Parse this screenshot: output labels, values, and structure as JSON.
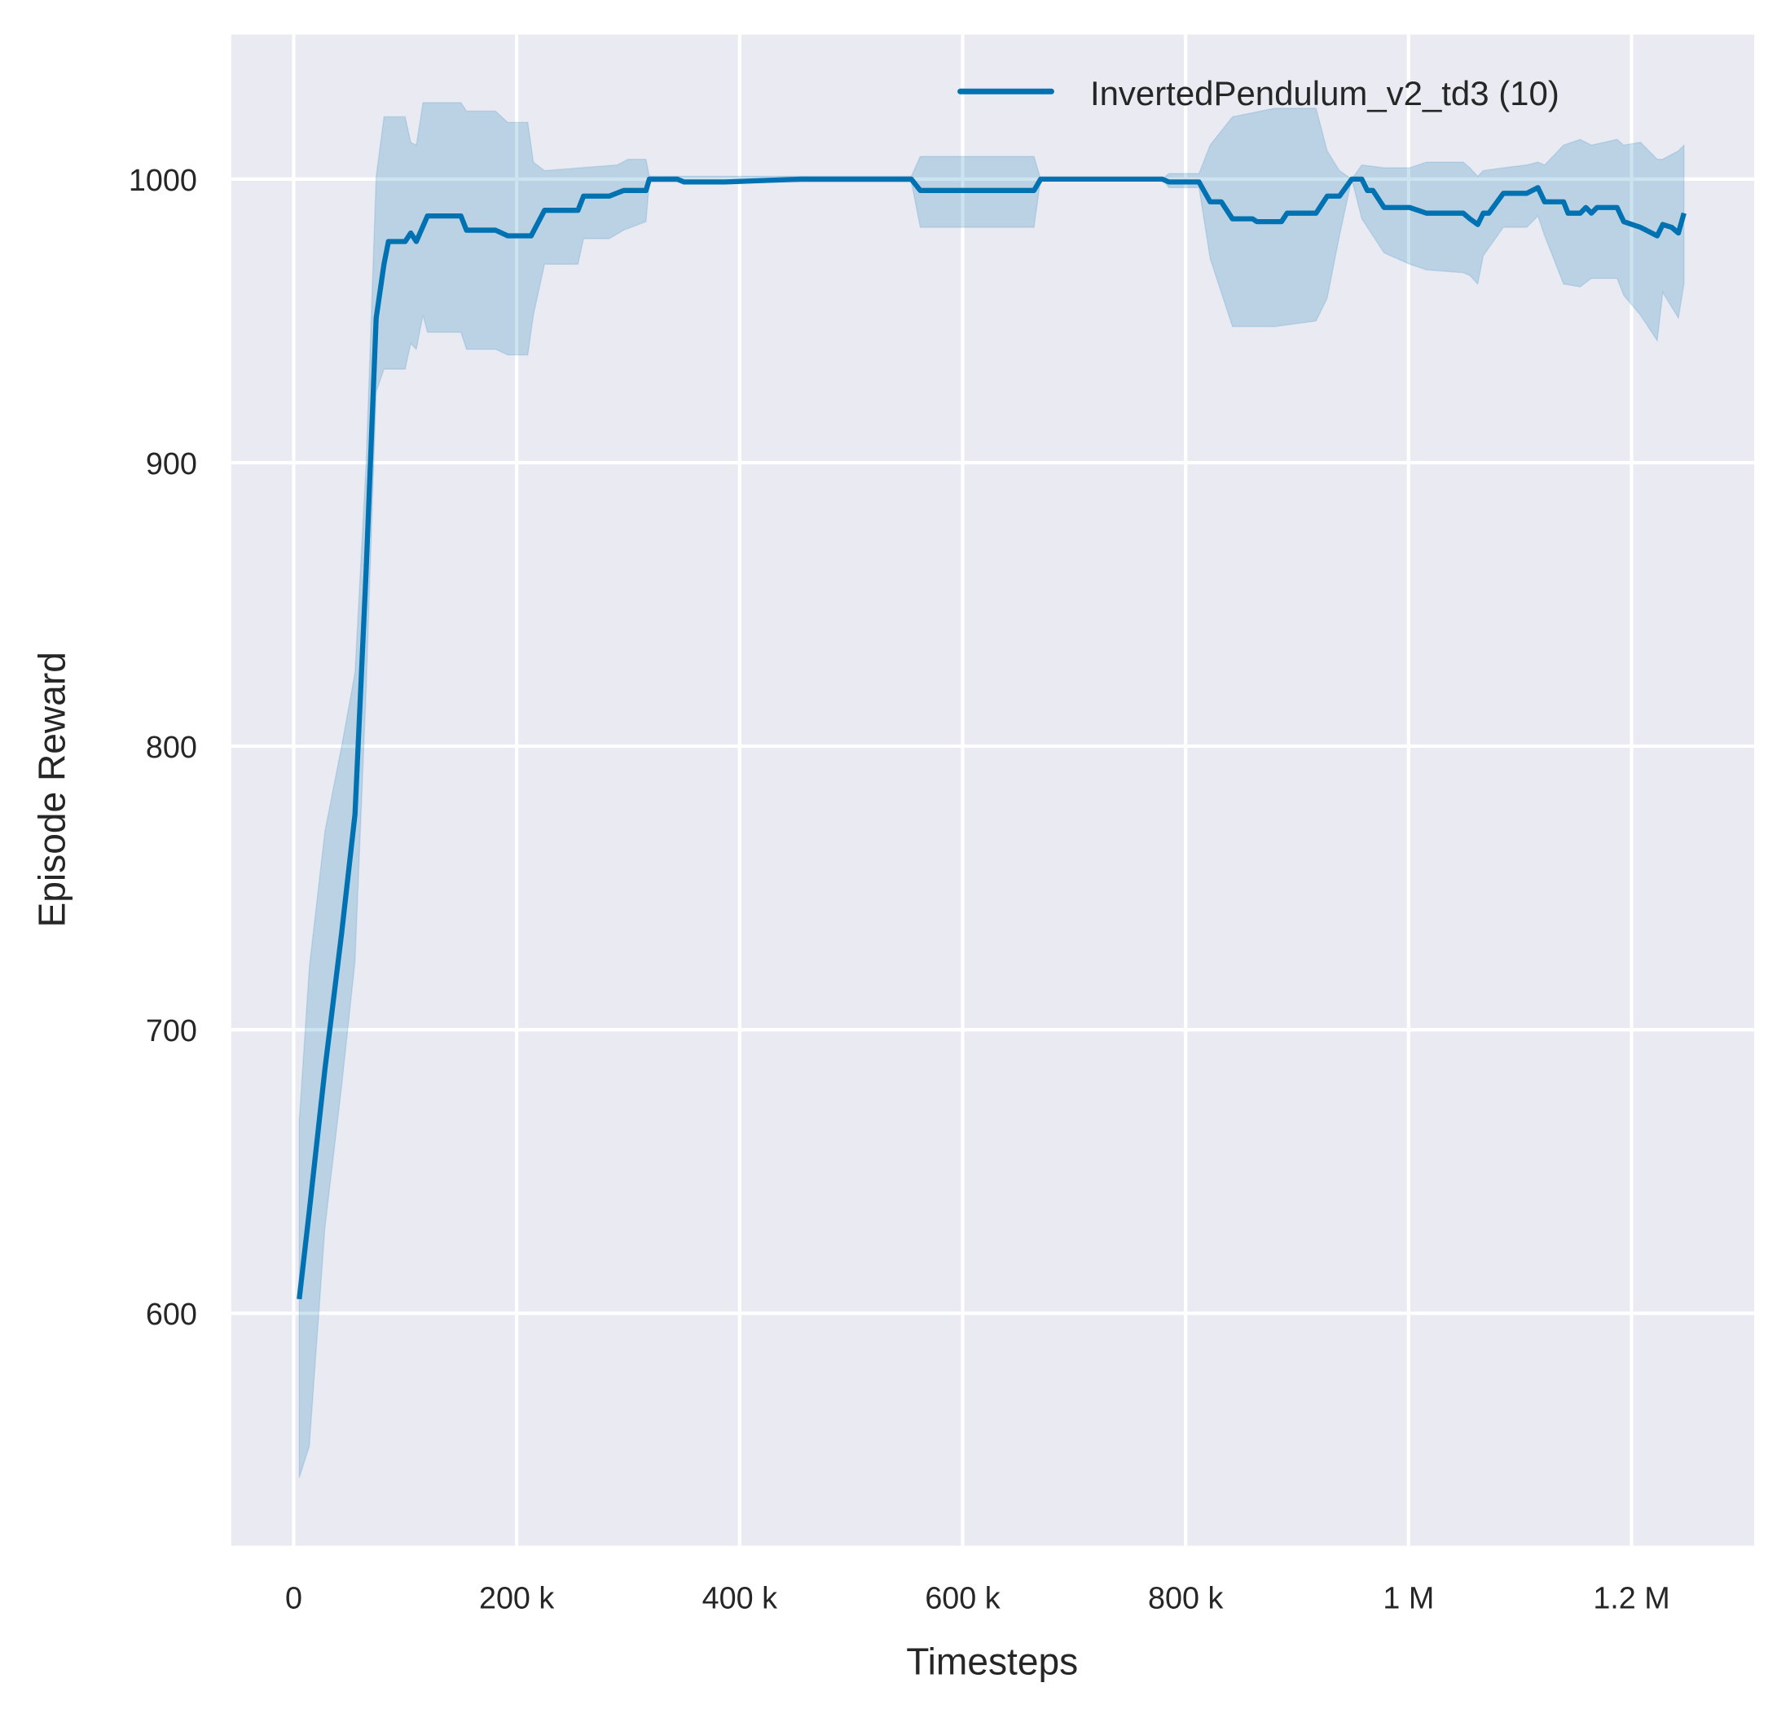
{
  "chart_data": {
    "type": "line",
    "title": "",
    "xlabel": "Timesteps",
    "ylabel": "Episode Reward",
    "xlim": [
      -56000,
      1310000
    ],
    "ylim": [
      518,
      1051
    ],
    "grid": true,
    "legend_placement": "top-right",
    "background_color": "#eaeaf2",
    "x_ticks": [
      0,
      200000,
      400000,
      600000,
      800000,
      1000000,
      1200000
    ],
    "x_tick_labels": [
      "0",
      "200 k",
      "400 k",
      "600 k",
      "800 k",
      "1 M",
      "1.2 M"
    ],
    "y_ticks": [
      600,
      700,
      800,
      900,
      1000
    ],
    "y_tick_labels": [
      "600",
      "700",
      "800",
      "900",
      "1000"
    ],
    "series": [
      {
        "name": "InvertedPendulum_v2_td3 (10)",
        "color": "#0072b2",
        "band_alpha": 0.2,
        "mean": [
          [
            5000,
            605
          ],
          [
            14000,
            636
          ],
          [
            28000,
            686
          ],
          [
            43000,
            734
          ],
          [
            55000,
            776
          ],
          [
            65000,
            862
          ],
          [
            74000,
            951
          ],
          [
            81000,
            970
          ],
          [
            85000,
            978
          ],
          [
            100000,
            978
          ],
          [
            105000,
            981
          ],
          [
            110000,
            978
          ],
          [
            120000,
            987
          ],
          [
            150000,
            987
          ],
          [
            155000,
            982
          ],
          [
            181000,
            982
          ],
          [
            192000,
            980
          ],
          [
            213000,
            980
          ],
          [
            225000,
            989
          ],
          [
            255000,
            989
          ],
          [
            260000,
            994
          ],
          [
            283000,
            994
          ],
          [
            296000,
            996
          ],
          [
            316000,
            996
          ],
          [
            319000,
            1000
          ],
          [
            344000,
            1000
          ],
          [
            350000,
            999
          ],
          [
            387000,
            999
          ],
          [
            455000,
            1000
          ],
          [
            554000,
            1000
          ],
          [
            562000,
            996
          ],
          [
            664000,
            996
          ],
          [
            670000,
            1000
          ],
          [
            779000,
            1000
          ],
          [
            785000,
            999
          ],
          [
            812000,
            999
          ],
          [
            822000,
            992
          ],
          [
            832000,
            992
          ],
          [
            842000,
            986
          ],
          [
            860000,
            986
          ],
          [
            864000,
            985
          ],
          [
            886000,
            985
          ],
          [
            891000,
            988
          ],
          [
            917000,
            988
          ],
          [
            927000,
            994
          ],
          [
            938000,
            994
          ],
          [
            949000,
            1000
          ],
          [
            958000,
            1000
          ],
          [
            963000,
            996
          ],
          [
            968000,
            996
          ],
          [
            978000,
            990
          ],
          [
            1001000,
            990
          ],
          [
            1016000,
            988
          ],
          [
            1049000,
            988
          ],
          [
            1055000,
            986
          ],
          [
            1062000,
            984
          ],
          [
            1067000,
            988
          ],
          [
            1072000,
            988
          ],
          [
            1085000,
            995
          ],
          [
            1106000,
            995
          ],
          [
            1116000,
            997
          ],
          [
            1122000,
            992
          ],
          [
            1139000,
            992
          ],
          [
            1143000,
            988
          ],
          [
            1154000,
            988
          ],
          [
            1159000,
            990
          ],
          [
            1164000,
            988
          ],
          [
            1169000,
            990
          ],
          [
            1187000,
            990
          ],
          [
            1193000,
            985
          ],
          [
            1208000,
            983
          ],
          [
            1223000,
            980
          ],
          [
            1228000,
            984
          ],
          [
            1236000,
            983
          ],
          [
            1242000,
            981
          ],
          [
            1247000,
            988
          ]
        ],
        "upper": [
          [
            5000,
            668
          ],
          [
            14000,
            722
          ],
          [
            28000,
            770
          ],
          [
            43000,
            800
          ],
          [
            55000,
            826
          ],
          [
            65000,
            900
          ],
          [
            74000,
            1001
          ],
          [
            81000,
            1022
          ],
          [
            100000,
            1022
          ],
          [
            105000,
            1013
          ],
          [
            110000,
            1012
          ],
          [
            116000,
            1027
          ],
          [
            150000,
            1027
          ],
          [
            155000,
            1024
          ],
          [
            181000,
            1024
          ],
          [
            192000,
            1020
          ],
          [
            210000,
            1020
          ],
          [
            215000,
            1006
          ],
          [
            225000,
            1003
          ],
          [
            290000,
            1005
          ],
          [
            300000,
            1007
          ],
          [
            316000,
            1007
          ],
          [
            319000,
            1001
          ],
          [
            554000,
            1001
          ],
          [
            562000,
            1008
          ],
          [
            664000,
            1008
          ],
          [
            670000,
            1000
          ],
          [
            779000,
            1000
          ],
          [
            785000,
            1002
          ],
          [
            812000,
            1002
          ],
          [
            822000,
            1012
          ],
          [
            842000,
            1022
          ],
          [
            880000,
            1025
          ],
          [
            917000,
            1025
          ],
          [
            927000,
            1010
          ],
          [
            938000,
            1003
          ],
          [
            949000,
            1000
          ],
          [
            958000,
            1005
          ],
          [
            978000,
            1004
          ],
          [
            1001000,
            1004
          ],
          [
            1016000,
            1006
          ],
          [
            1049000,
            1006
          ],
          [
            1055000,
            1004
          ],
          [
            1062000,
            1001
          ],
          [
            1067000,
            1003
          ],
          [
            1085000,
            1004
          ],
          [
            1106000,
            1005
          ],
          [
            1116000,
            1006
          ],
          [
            1122000,
            1005
          ],
          [
            1139000,
            1012
          ],
          [
            1154000,
            1014
          ],
          [
            1164000,
            1012
          ],
          [
            1187000,
            1014
          ],
          [
            1193000,
            1012
          ],
          [
            1208000,
            1013
          ],
          [
            1223000,
            1007
          ],
          [
            1228000,
            1007
          ],
          [
            1242000,
            1010
          ],
          [
            1247000,
            1012
          ]
        ],
        "lower": [
          [
            5000,
            542
          ],
          [
            14000,
            553
          ],
          [
            28000,
            630
          ],
          [
            43000,
            680
          ],
          [
            55000,
            724
          ],
          [
            65000,
            820
          ],
          [
            74000,
            925
          ],
          [
            81000,
            933
          ],
          [
            100000,
            933
          ],
          [
            105000,
            942
          ],
          [
            110000,
            940
          ],
          [
            116000,
            952
          ],
          [
            120000,
            946
          ],
          [
            150000,
            946
          ],
          [
            155000,
            940
          ],
          [
            181000,
            940
          ],
          [
            192000,
            938
          ],
          [
            210000,
            938
          ],
          [
            215000,
            952
          ],
          [
            225000,
            970
          ],
          [
            255000,
            970
          ],
          [
            260000,
            979
          ],
          [
            283000,
            979
          ],
          [
            296000,
            982
          ],
          [
            316000,
            985
          ],
          [
            319000,
            999
          ],
          [
            554000,
            999
          ],
          [
            562000,
            983
          ],
          [
            664000,
            983
          ],
          [
            670000,
            1000
          ],
          [
            779000,
            1000
          ],
          [
            785000,
            997
          ],
          [
            812000,
            997
          ],
          [
            822000,
            972
          ],
          [
            842000,
            948
          ],
          [
            880000,
            948
          ],
          [
            917000,
            950
          ],
          [
            927000,
            958
          ],
          [
            938000,
            980
          ],
          [
            949000,
            1000
          ],
          [
            958000,
            986
          ],
          [
            978000,
            974
          ],
          [
            1001000,
            970
          ],
          [
            1016000,
            968
          ],
          [
            1049000,
            967
          ],
          [
            1055000,
            966
          ],
          [
            1062000,
            963
          ],
          [
            1067000,
            973
          ],
          [
            1085000,
            983
          ],
          [
            1106000,
            983
          ],
          [
            1116000,
            987
          ],
          [
            1122000,
            980
          ],
          [
            1139000,
            963
          ],
          [
            1154000,
            962
          ],
          [
            1164000,
            965
          ],
          [
            1187000,
            965
          ],
          [
            1193000,
            959
          ],
          [
            1208000,
            952
          ],
          [
            1223000,
            943
          ],
          [
            1228000,
            960
          ],
          [
            1242000,
            951
          ],
          [
            1247000,
            963
          ]
        ]
      }
    ]
  }
}
